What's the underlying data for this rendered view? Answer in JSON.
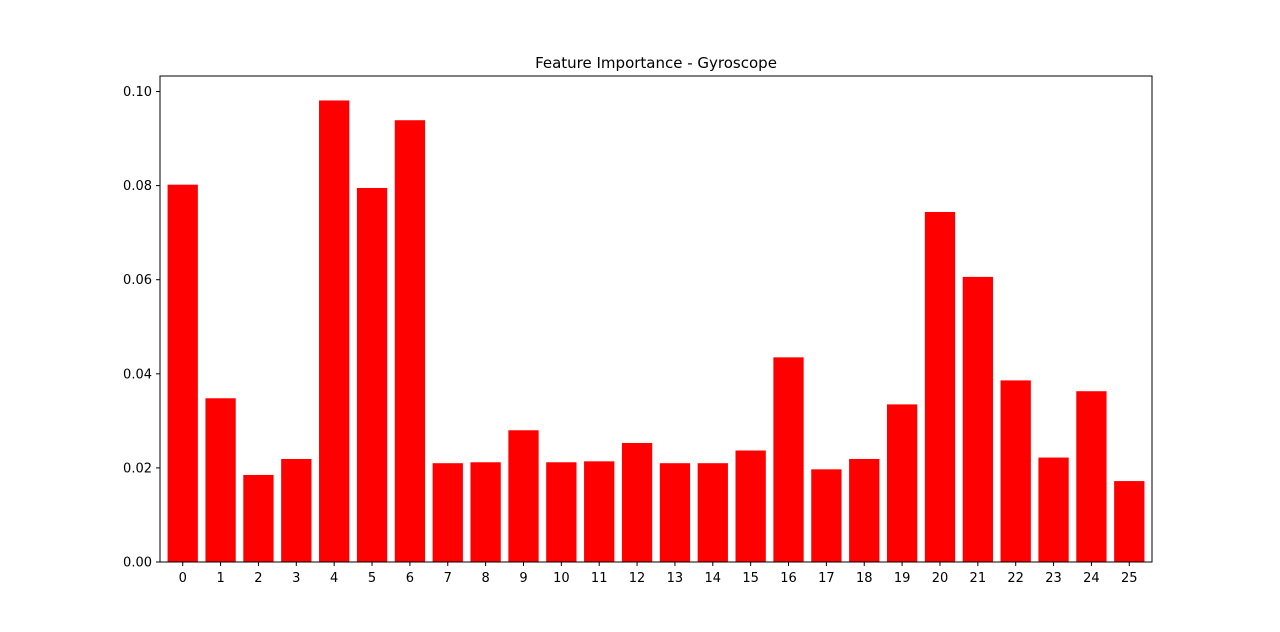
{
  "chart_data": {
    "type": "bar",
    "title": "Feature Importance - Gyroscope",
    "xlabel": "",
    "ylabel": "",
    "categories": [
      "0",
      "1",
      "2",
      "3",
      "4",
      "5",
      "6",
      "7",
      "8",
      "9",
      "10",
      "11",
      "12",
      "13",
      "14",
      "15",
      "16",
      "17",
      "18",
      "19",
      "20",
      "21",
      "22",
      "23",
      "24",
      "25"
    ],
    "values": [
      0.0802,
      0.0348,
      0.0185,
      0.0219,
      0.0981,
      0.0795,
      0.0939,
      0.021,
      0.0212,
      0.028,
      0.0212,
      0.0214,
      0.0253,
      0.021,
      0.021,
      0.0237,
      0.0435,
      0.0197,
      0.0219,
      0.0335,
      0.0744,
      0.0606,
      0.0386,
      0.0222,
      0.0363,
      0.0172
    ],
    "ylim": [
      0,
      0.1033
    ],
    "yticks": [
      "0.00",
      "0.02",
      "0.04",
      "0.06",
      "0.08",
      "0.10"
    ],
    "bar_color": "#ff0000",
    "grid": false,
    "legend": "none"
  }
}
